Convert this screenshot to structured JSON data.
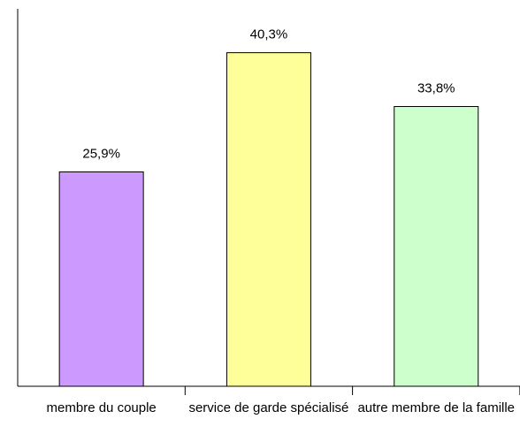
{
  "chart_data": {
    "type": "bar",
    "categories": [
      "membre du couple",
      "service de garde spécialisé",
      "autre membre de la famille"
    ],
    "values": [
      25.9,
      40.3,
      33.8
    ],
    "value_labels": [
      "25,9%",
      "40,3%",
      "33,8%"
    ],
    "colors": [
      "#cc99ff",
      "#ffff99",
      "#ccffcc"
    ],
    "ylim": [
      0,
      45.6
    ]
  }
}
